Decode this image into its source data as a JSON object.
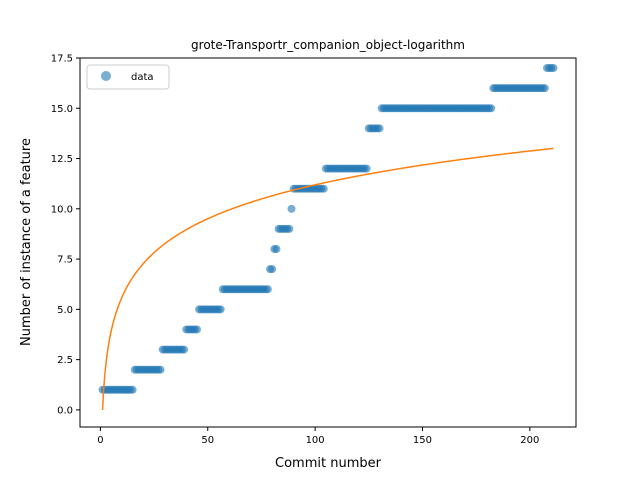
{
  "chart_data": {
    "type": "scatter",
    "title": "grote-Transportr_companion_object-logarithm",
    "xlabel": "Commit number",
    "ylabel": "Number of instance of a feature",
    "xlim": [
      -9.5,
      221.5
    ],
    "ylim": [
      -0.85,
      17.5
    ],
    "xticks": [
      0,
      50,
      100,
      150,
      200
    ],
    "xtick_labels": [
      "0",
      "50",
      "100",
      "150",
      "200"
    ],
    "yticks": [
      0,
      2.5,
      5,
      7.5,
      10,
      12.5,
      15,
      17.5
    ],
    "ytick_labels": [
      "0.0",
      "2.5",
      "5.0",
      "7.5",
      "10.0",
      "12.5",
      "15.0",
      "17.5"
    ],
    "grid": false,
    "legend": {
      "placement": "top-left",
      "entries": [
        "data"
      ]
    },
    "series": [
      {
        "name": "data",
        "kind": "scatter",
        "color": "#1f77b4",
        "alpha": 0.6,
        "step_ranges": [
          {
            "x_from": 1,
            "x_to": 15,
            "y": 1
          },
          {
            "x_from": 16,
            "x_to": 28,
            "y": 2
          },
          {
            "x_from": 29,
            "x_to": 39,
            "y": 3
          },
          {
            "x_from": 40,
            "x_to": 45,
            "y": 4
          },
          {
            "x_from": 46,
            "x_to": 56,
            "y": 5
          },
          {
            "x_from": 57,
            "x_to": 78,
            "y": 6
          },
          {
            "x_from": 79,
            "x_to": 80,
            "y": 7
          },
          {
            "x_from": 81,
            "x_to": 82,
            "y": 8
          },
          {
            "x_from": 83,
            "x_to": 88,
            "y": 9
          },
          {
            "x_from": 89,
            "x_to": 89,
            "y": 10
          },
          {
            "x_from": 90,
            "x_to": 104,
            "y": 11
          },
          {
            "x_from": 105,
            "x_to": 124,
            "y": 12
          },
          {
            "x_from": 125,
            "x_to": 130,
            "y": 14
          },
          {
            "x_from": 131,
            "x_to": 182,
            "y": 15
          },
          {
            "x_from": 183,
            "x_to": 207,
            "y": 16
          },
          {
            "x_from": 208,
            "x_to": 211,
            "y": 17
          }
        ]
      },
      {
        "kind": "line",
        "color": "#ff7f0e",
        "function": "a*ln(x)",
        "a": 2.43,
        "x_range": [
          1,
          211
        ]
      }
    ]
  }
}
